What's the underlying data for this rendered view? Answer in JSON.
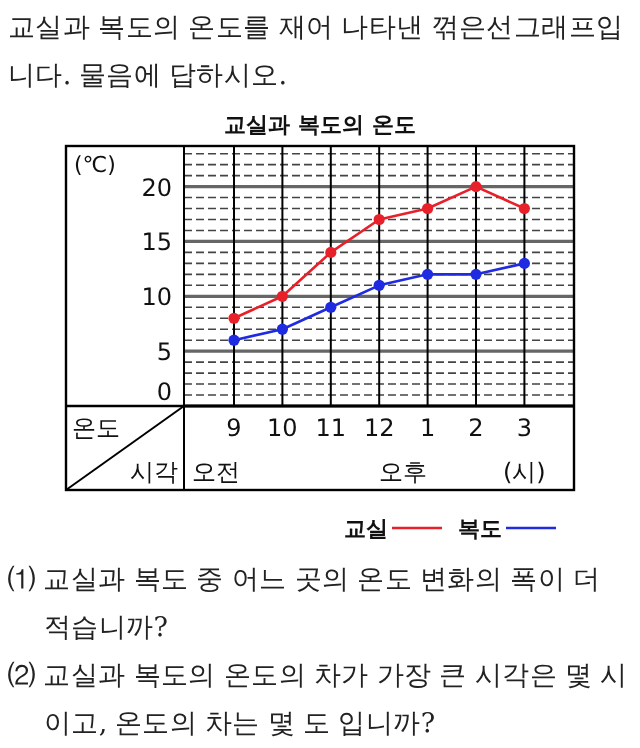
{
  "chart_data": {
    "type": "line",
    "title": "교실과 복도의 온도",
    "categories": [
      "9",
      "10",
      "11",
      "12",
      "1",
      "2",
      "3"
    ],
    "series": [
      {
        "name": "교실",
        "color": "#e8202a",
        "values": [
          8,
          10,
          14,
          17,
          18,
          20,
          18
        ]
      },
      {
        "name": "복도",
        "color": "#1f2be0",
        "values": [
          6,
          7,
          9,
          11,
          12,
          12,
          13
        ]
      }
    ],
    "ylim": [
      0,
      23.7
    ],
    "yticks": [
      0,
      {
        "value": 1,
        "label": null
      },
      {
        "value": 2,
        "label": null
      },
      {
        "value": 3,
        "label": null
      },
      {
        "value": 4,
        "label": null
      },
      5,
      {
        "value": 6,
        "label": null
      },
      {
        "value": 7,
        "label": null
      },
      {
        "value": 8,
        "label": null
      },
      {
        "value": 9,
        "label": null
      },
      10,
      {
        "value": 11,
        "label": null
      },
      {
        "value": 12,
        "label": null
      },
      {
        "value": 13,
        "label": null
      },
      {
        "value": 14,
        "label": null
      },
      15,
      {
        "value": 16,
        "label": null
      },
      {
        "value": 17,
        "label": null
      },
      {
        "value": 18,
        "label": null
      },
      {
        "value": 19,
        "label": null
      },
      20,
      {
        "value": 21,
        "label": null
      },
      {
        "value": 22,
        "label": null
      },
      {
        "value": 23,
        "label": null
      }
    ],
    "ylabel": "온도",
    "xlabel": "시각",
    "annotations": [
      "(℃)",
      "오전",
      "오후",
      "(시)",
      "교실과 복도의 온도를 재어 나타낸 꺾은선그래프입니다. 물음에 답하시오.",
      "⑴ 교실과 복도 중 어느 곳의 온도 변화의 폭이 더 적습니까?",
      "⑵ 교실과 복도의 온도의 차가 가장 큰 시각은 몇 시이고, 온도의 차는 몇 도 입니까?"
    ],
    "grid": true,
    "marker": "circle",
    "line_style": "solid",
    "legend": "bottom right"
  }
}
